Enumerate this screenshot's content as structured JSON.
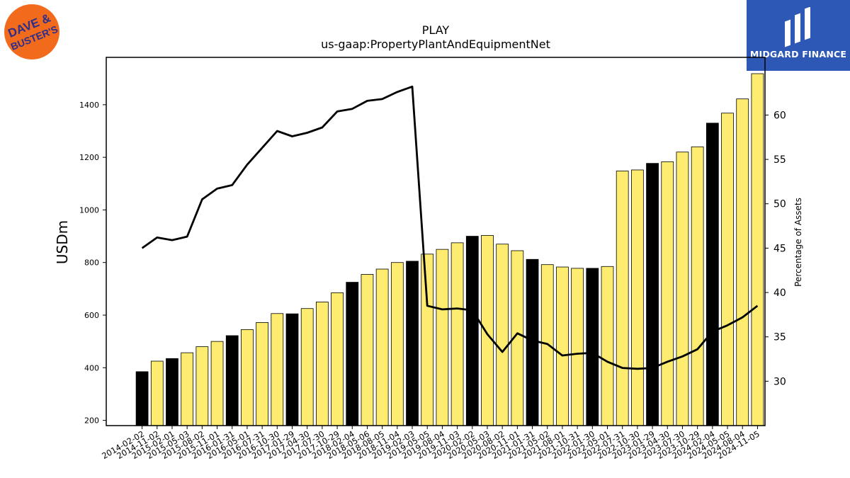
{
  "branding": {
    "left_logo_text": [
      "DAVE &",
      "BUSTER'S"
    ],
    "left_logo_colors": {
      "circle": "#f26b1d",
      "text": "#2b2e8c"
    },
    "right_logo_text": "MIDGARD FINANCE",
    "right_logo_color": "#2d58b6"
  },
  "chart_data": {
    "type": "bar",
    "title": "PLAY",
    "subtitle": "us-gaap:PropertyPlantAndEquipmentNet",
    "ylabel": "USDm",
    "y2label": "Percentage of Assets",
    "ylim": [
      180,
      1580
    ],
    "y2lim": [
      25,
      66.5
    ],
    "yticks": [
      200,
      400,
      600,
      800,
      1000,
      1200,
      1400
    ],
    "y2ticks": [
      30,
      35,
      40,
      45,
      50,
      55,
      60
    ],
    "colors": {
      "annual_bar": "#000000",
      "quarter_bar": "#fdec6f",
      "line": "#000000"
    },
    "categories": [
      "2014-02-02",
      "2014-11-02",
      "2015-02-01",
      "2015-05-03",
      "2015-08-02",
      "2015-11-01",
      "2016-01-31",
      "2016-05-01",
      "2016-07-31",
      "2016-10-30",
      "2017-01-29",
      "2017-04-30",
      "2017-07-30",
      "2017-10-29",
      "2018-02-04",
      "2018-05-06",
      "2018-08-05",
      "2018-11-04",
      "2019-02-03",
      "2019-05-05",
      "2019-08-04",
      "2019-11-03",
      "2020-02-02",
      "2020-05-03",
      "2020-08-02",
      "2020-11-01",
      "2021-01-31",
      "2021-05-02",
      "2021-08-01",
      "2021-10-31",
      "2022-01-30",
      "2022-05-01",
      "2022-07-31",
      "2022-10-30",
      "2023-01-29",
      "2023-04-30",
      "2023-07-30",
      "2023-10-29",
      "2024-02-04",
      "2024-05-05",
      "2024-08-04",
      "2024-11-05"
    ],
    "series": [
      {
        "kind": "bar",
        "values": [
          385,
          425,
          435,
          457,
          480,
          500,
          522,
          545,
          572,
          606,
          605,
          625,
          650,
          685,
          725,
          755,
          775,
          800,
          805,
          832,
          850,
          875,
          900,
          903,
          870,
          845,
          812,
          792,
          783,
          778,
          778,
          785,
          1148,
          1152,
          1177,
          1183,
          1220,
          1240,
          1330,
          1368,
          1422,
          1518
        ],
        "annual": [
          true,
          false,
          true,
          false,
          false,
          false,
          true,
          false,
          false,
          false,
          true,
          false,
          false,
          false,
          true,
          false,
          false,
          false,
          true,
          false,
          false,
          false,
          true,
          false,
          false,
          false,
          true,
          false,
          false,
          false,
          true,
          false,
          false,
          false,
          true,
          false,
          false,
          false,
          true,
          false,
          false,
          false
        ]
      },
      {
        "kind": "line",
        "axis": "right",
        "values": [
          45.0,
          46.2,
          45.9,
          46.3,
          50.5,
          51.7,
          52.1,
          54.4,
          56.3,
          58.2,
          57.6,
          58.0,
          58.6,
          60.4,
          60.7,
          61.6,
          61.8,
          62.6,
          63.2,
          38.5,
          38.1,
          38.2,
          38.0,
          35.3,
          33.3,
          35.4,
          34.6,
          34.2,
          32.9,
          33.1,
          33.2,
          32.2,
          31.5,
          31.4,
          31.5,
          32.2,
          32.8,
          33.6,
          35.6,
          36.3,
          37.2,
          38.5
        ]
      }
    ]
  }
}
